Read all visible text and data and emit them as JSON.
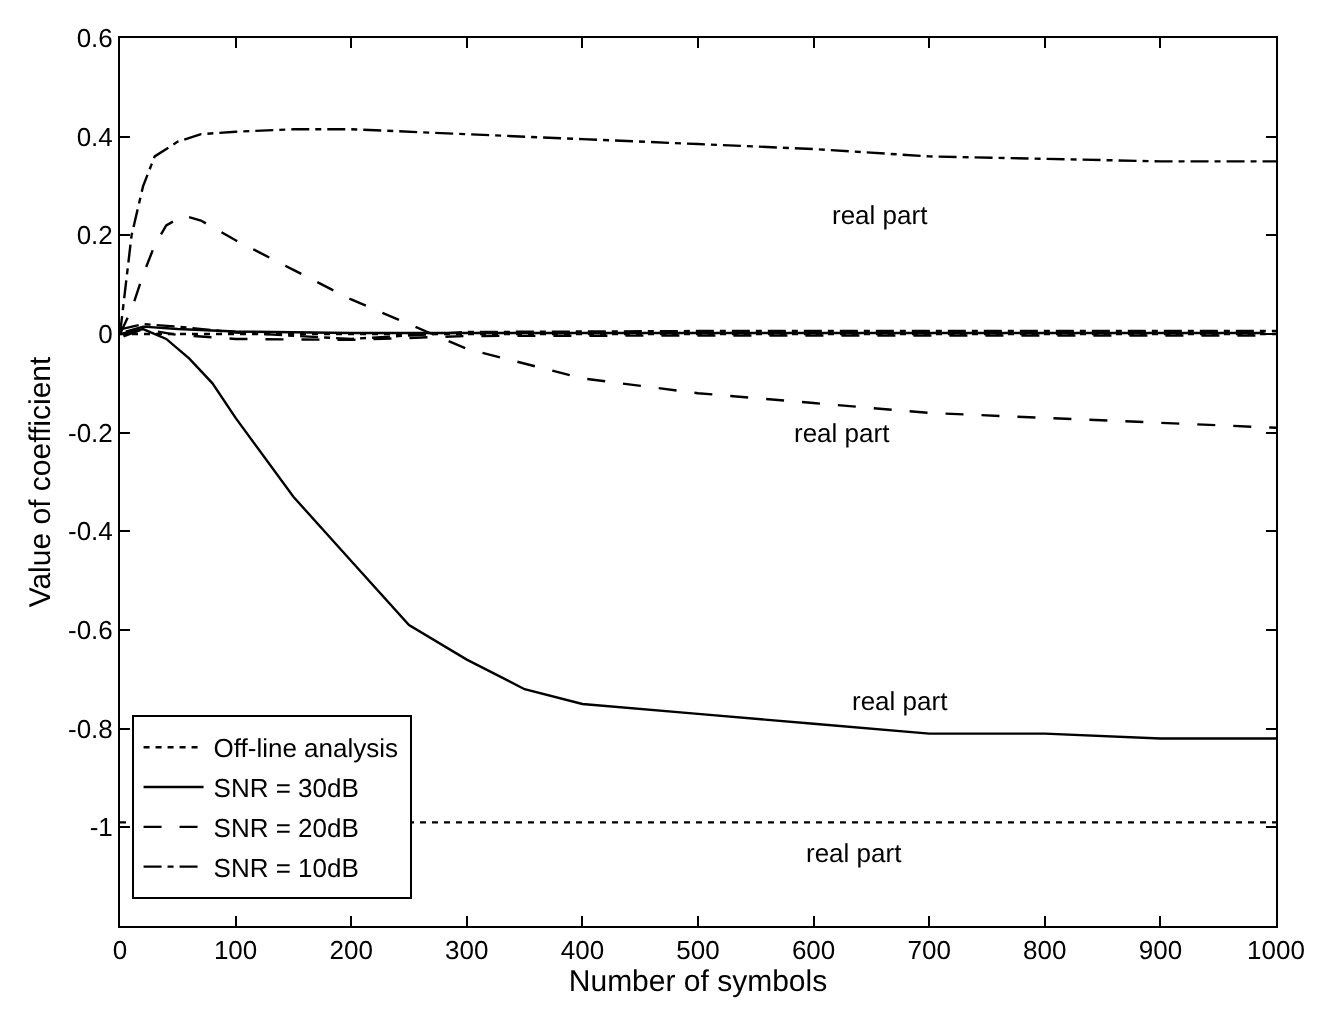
{
  "chart_data": {
    "type": "line",
    "xlabel": "Number of symbols",
    "ylabel": "Value of coefficient",
    "xlim": [
      0,
      1000
    ],
    "ylim": [
      -1.2,
      0.6
    ],
    "xticks": [
      0,
      100,
      200,
      300,
      400,
      500,
      600,
      700,
      800,
      900,
      1000
    ],
    "yticks": [
      {
        "value": -1.2,
        "label": null
      },
      -1,
      -0.8,
      -0.6,
      -0.4,
      -0.2,
      0,
      0.2,
      0.4,
      0.6
    ],
    "legend": "bottom left",
    "marker": "none",
    "series": [
      {
        "name": "Off-line analysis",
        "color": "#000000",
        "line_style": "dotted",
        "x": [
          0,
          1000
        ],
        "values": [
          -0.99,
          -0.99
        ]
      },
      {
        "name": "SNR = 30dB",
        "color": "#000000",
        "line_style": "solid",
        "x": [
          0,
          20,
          40,
          60,
          80,
          100,
          150,
          200,
          250,
          300,
          350,
          400,
          500,
          600,
          700,
          800,
          900,
          1000
        ],
        "values": [
          0,
          0.01,
          -0.01,
          -0.05,
          -0.1,
          -0.17,
          -0.33,
          -0.46,
          -0.59,
          -0.66,
          -0.72,
          -0.75,
          -0.77,
          -0.79,
          -0.81,
          -0.81,
          -0.82,
          -0.82
        ]
      },
      {
        "name": "SNR = 20dB",
        "color": "#000000",
        "line_style": "dashed",
        "x": [
          0,
          10,
          20,
          30,
          40,
          55,
          70,
          100,
          150,
          200,
          250,
          300,
          400,
          500,
          600,
          700,
          800,
          900,
          1000
        ],
        "values": [
          0,
          0.05,
          0.12,
          0.18,
          0.22,
          0.24,
          0.23,
          0.19,
          0.13,
          0.07,
          0.02,
          -0.03,
          -0.09,
          -0.12,
          -0.14,
          -0.16,
          -0.17,
          -0.18,
          -0.19
        ]
      },
      {
        "name": "SNR = 10dB",
        "color": "#000000",
        "line_style": "dashdot",
        "x": [
          0,
          5,
          10,
          20,
          30,
          50,
          70,
          100,
          150,
          200,
          300,
          400,
          500,
          600,
          700,
          800,
          900,
          1000
        ],
        "values": [
          0,
          0.1,
          0.2,
          0.3,
          0.36,
          0.39,
          0.405,
          0.41,
          0.415,
          0.415,
          0.405,
          0.395,
          0.385,
          0.375,
          0.36,
          0.355,
          0.35,
          0.35
        ]
      },
      {
        "color": "#000000",
        "line_style": "dotted",
        "x": [
          0,
          1000
        ],
        "values": [
          0,
          0
        ]
      },
      {
        "color": "#000000",
        "line_style": "solid",
        "x": [
          5,
          20,
          50,
          100,
          200,
          300,
          500,
          990
        ],
        "values": [
          0.005,
          0.015,
          0.01,
          0.005,
          0.002,
          0.002,
          0.002,
          0.002
        ]
      },
      {
        "color": "#000000",
        "line_style": "dashed",
        "x": [
          3,
          20,
          50,
          100,
          200,
          300,
          500,
          995
        ],
        "values": [
          -0.005,
          0.01,
          -0.002,
          -0.01,
          -0.012,
          -0.004,
          -0.003,
          -0.003
        ]
      },
      {
        "color": "#000000",
        "line_style": "dashdot",
        "x": [
          1,
          20,
          50,
          100,
          200,
          300,
          500,
          1000
        ],
        "values": [
          0.01,
          0.02,
          0.015,
          0.003,
          -0.01,
          0.004,
          0.006,
          0.006
        ]
      }
    ],
    "annotations": [
      "real part",
      "real part",
      "real part",
      "real part"
    ]
  }
}
